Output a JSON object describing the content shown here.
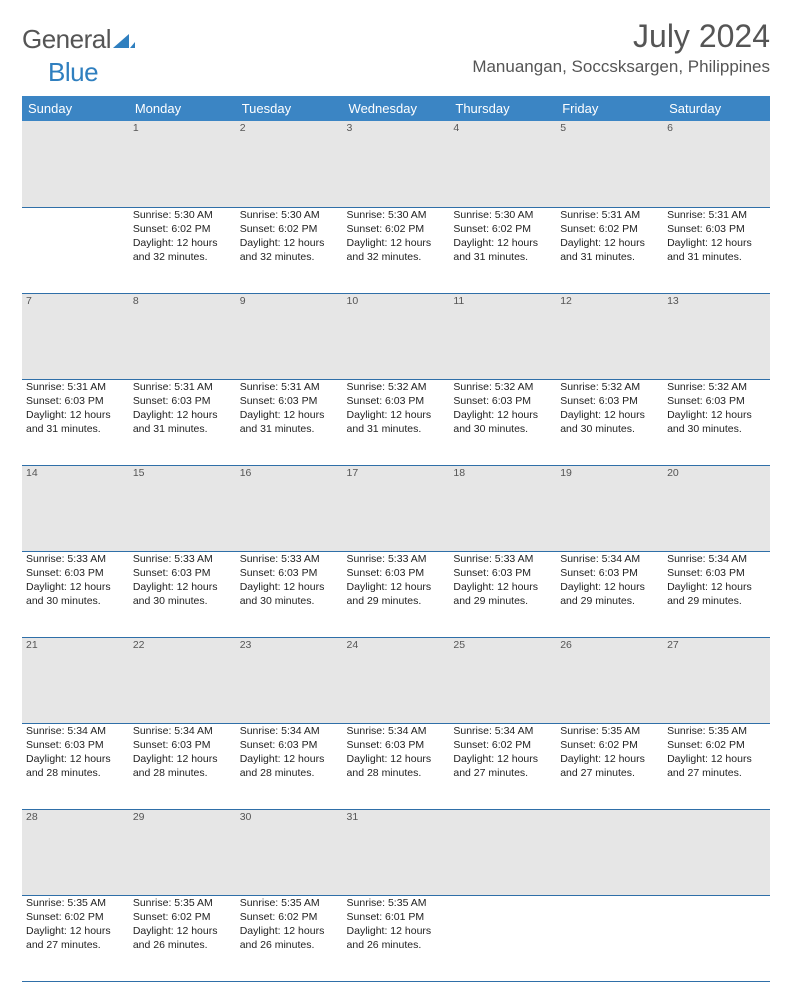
{
  "logo": {
    "text1": "General",
    "text2": "Blue"
  },
  "title": "July 2024",
  "location": "Manuangan, Soccsksargen, Philippines",
  "colors": {
    "header_bg": "#3b85c4",
    "header_text": "#ffffff",
    "daynum_bg": "#e6e6e6",
    "rule": "#2f6fa8",
    "text": "#222222",
    "muted": "#555555"
  },
  "day_names": [
    "Sunday",
    "Monday",
    "Tuesday",
    "Wednesday",
    "Thursday",
    "Friday",
    "Saturday"
  ],
  "weeks": [
    {
      "nums": [
        "",
        "1",
        "2",
        "3",
        "4",
        "5",
        "6"
      ],
      "cells": [
        null,
        {
          "sunrise": "Sunrise: 5:30 AM",
          "sunset": "Sunset: 6:02 PM",
          "day1": "Daylight: 12 hours",
          "day2": "and 32 minutes."
        },
        {
          "sunrise": "Sunrise: 5:30 AM",
          "sunset": "Sunset: 6:02 PM",
          "day1": "Daylight: 12 hours",
          "day2": "and 32 minutes."
        },
        {
          "sunrise": "Sunrise: 5:30 AM",
          "sunset": "Sunset: 6:02 PM",
          "day1": "Daylight: 12 hours",
          "day2": "and 32 minutes."
        },
        {
          "sunrise": "Sunrise: 5:30 AM",
          "sunset": "Sunset: 6:02 PM",
          "day1": "Daylight: 12 hours",
          "day2": "and 31 minutes."
        },
        {
          "sunrise": "Sunrise: 5:31 AM",
          "sunset": "Sunset: 6:02 PM",
          "day1": "Daylight: 12 hours",
          "day2": "and 31 minutes."
        },
        {
          "sunrise": "Sunrise: 5:31 AM",
          "sunset": "Sunset: 6:03 PM",
          "day1": "Daylight: 12 hours",
          "day2": "and 31 minutes."
        }
      ]
    },
    {
      "nums": [
        "7",
        "8",
        "9",
        "10",
        "11",
        "12",
        "13"
      ],
      "cells": [
        {
          "sunrise": "Sunrise: 5:31 AM",
          "sunset": "Sunset: 6:03 PM",
          "day1": "Daylight: 12 hours",
          "day2": "and 31 minutes."
        },
        {
          "sunrise": "Sunrise: 5:31 AM",
          "sunset": "Sunset: 6:03 PM",
          "day1": "Daylight: 12 hours",
          "day2": "and 31 minutes."
        },
        {
          "sunrise": "Sunrise: 5:31 AM",
          "sunset": "Sunset: 6:03 PM",
          "day1": "Daylight: 12 hours",
          "day2": "and 31 minutes."
        },
        {
          "sunrise": "Sunrise: 5:32 AM",
          "sunset": "Sunset: 6:03 PM",
          "day1": "Daylight: 12 hours",
          "day2": "and 31 minutes."
        },
        {
          "sunrise": "Sunrise: 5:32 AM",
          "sunset": "Sunset: 6:03 PM",
          "day1": "Daylight: 12 hours",
          "day2": "and 30 minutes."
        },
        {
          "sunrise": "Sunrise: 5:32 AM",
          "sunset": "Sunset: 6:03 PM",
          "day1": "Daylight: 12 hours",
          "day2": "and 30 minutes."
        },
        {
          "sunrise": "Sunrise: 5:32 AM",
          "sunset": "Sunset: 6:03 PM",
          "day1": "Daylight: 12 hours",
          "day2": "and 30 minutes."
        }
      ]
    },
    {
      "nums": [
        "14",
        "15",
        "16",
        "17",
        "18",
        "19",
        "20"
      ],
      "cells": [
        {
          "sunrise": "Sunrise: 5:33 AM",
          "sunset": "Sunset: 6:03 PM",
          "day1": "Daylight: 12 hours",
          "day2": "and 30 minutes."
        },
        {
          "sunrise": "Sunrise: 5:33 AM",
          "sunset": "Sunset: 6:03 PM",
          "day1": "Daylight: 12 hours",
          "day2": "and 30 minutes."
        },
        {
          "sunrise": "Sunrise: 5:33 AM",
          "sunset": "Sunset: 6:03 PM",
          "day1": "Daylight: 12 hours",
          "day2": "and 30 minutes."
        },
        {
          "sunrise": "Sunrise: 5:33 AM",
          "sunset": "Sunset: 6:03 PM",
          "day1": "Daylight: 12 hours",
          "day2": "and 29 minutes."
        },
        {
          "sunrise": "Sunrise: 5:33 AM",
          "sunset": "Sunset: 6:03 PM",
          "day1": "Daylight: 12 hours",
          "day2": "and 29 minutes."
        },
        {
          "sunrise": "Sunrise: 5:34 AM",
          "sunset": "Sunset: 6:03 PM",
          "day1": "Daylight: 12 hours",
          "day2": "and 29 minutes."
        },
        {
          "sunrise": "Sunrise: 5:34 AM",
          "sunset": "Sunset: 6:03 PM",
          "day1": "Daylight: 12 hours",
          "day2": "and 29 minutes."
        }
      ]
    },
    {
      "nums": [
        "21",
        "22",
        "23",
        "24",
        "25",
        "26",
        "27"
      ],
      "cells": [
        {
          "sunrise": "Sunrise: 5:34 AM",
          "sunset": "Sunset: 6:03 PM",
          "day1": "Daylight: 12 hours",
          "day2": "and 28 minutes."
        },
        {
          "sunrise": "Sunrise: 5:34 AM",
          "sunset": "Sunset: 6:03 PM",
          "day1": "Daylight: 12 hours",
          "day2": "and 28 minutes."
        },
        {
          "sunrise": "Sunrise: 5:34 AM",
          "sunset": "Sunset: 6:03 PM",
          "day1": "Daylight: 12 hours",
          "day2": "and 28 minutes."
        },
        {
          "sunrise": "Sunrise: 5:34 AM",
          "sunset": "Sunset: 6:03 PM",
          "day1": "Daylight: 12 hours",
          "day2": "and 28 minutes."
        },
        {
          "sunrise": "Sunrise: 5:34 AM",
          "sunset": "Sunset: 6:02 PM",
          "day1": "Daylight: 12 hours",
          "day2": "and 27 minutes."
        },
        {
          "sunrise": "Sunrise: 5:35 AM",
          "sunset": "Sunset: 6:02 PM",
          "day1": "Daylight: 12 hours",
          "day2": "and 27 minutes."
        },
        {
          "sunrise": "Sunrise: 5:35 AM",
          "sunset": "Sunset: 6:02 PM",
          "day1": "Daylight: 12 hours",
          "day2": "and 27 minutes."
        }
      ]
    },
    {
      "nums": [
        "28",
        "29",
        "30",
        "31",
        "",
        "",
        ""
      ],
      "cells": [
        {
          "sunrise": "Sunrise: 5:35 AM",
          "sunset": "Sunset: 6:02 PM",
          "day1": "Daylight: 12 hours",
          "day2": "and 27 minutes."
        },
        {
          "sunrise": "Sunrise: 5:35 AM",
          "sunset": "Sunset: 6:02 PM",
          "day1": "Daylight: 12 hours",
          "day2": "and 26 minutes."
        },
        {
          "sunrise": "Sunrise: 5:35 AM",
          "sunset": "Sunset: 6:02 PM",
          "day1": "Daylight: 12 hours",
          "day2": "and 26 minutes."
        },
        {
          "sunrise": "Sunrise: 5:35 AM",
          "sunset": "Sunset: 6:01 PM",
          "day1": "Daylight: 12 hours",
          "day2": "and 26 minutes."
        },
        null,
        null,
        null
      ]
    }
  ]
}
